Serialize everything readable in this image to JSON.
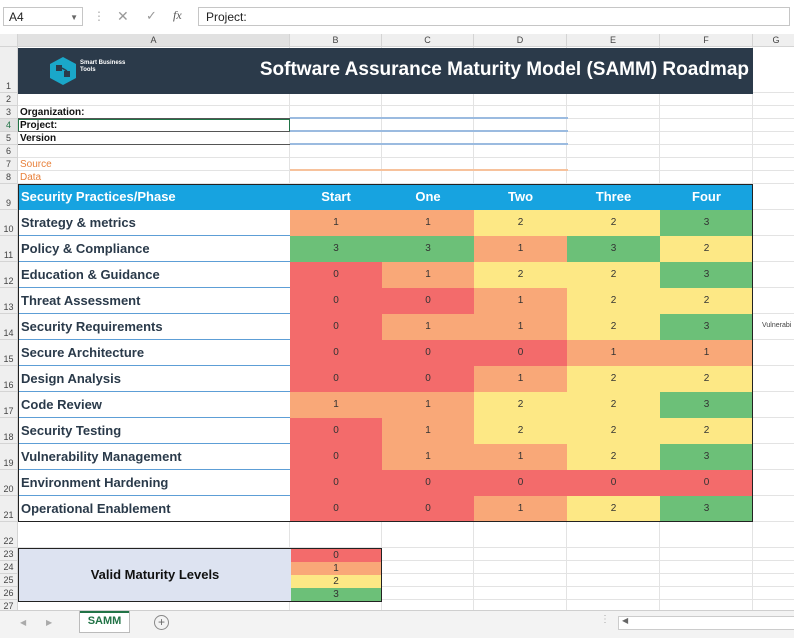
{
  "formula_bar": {
    "name_box": "A4",
    "formula": "Project:"
  },
  "columns": [
    "A",
    "B",
    "C",
    "D",
    "E",
    "F",
    "G"
  ],
  "rows": [
    "1",
    "2",
    "3",
    "4",
    "5",
    "6",
    "7",
    "8",
    "9",
    "10",
    "11",
    "12",
    "13",
    "14",
    "15",
    "16",
    "17",
    "18",
    "19",
    "20",
    "21",
    "22",
    "23",
    "24",
    "25",
    "26",
    "27"
  ],
  "banner": {
    "logo_text": "Smart Business Tools",
    "title": "Software Assurance Maturity Model (SAMM) Roadmap"
  },
  "labels": {
    "organization": "Organization:",
    "project": "Project:",
    "version": "Version",
    "source_data": "Source Data"
  },
  "table": {
    "header": "Security Practices/Phase",
    "phases": [
      "Start",
      "One",
      "Two",
      "Three",
      "Four"
    ],
    "rows": [
      {
        "practice": "Strategy & metrics",
        "values": [
          1,
          1,
          2,
          2,
          3
        ]
      },
      {
        "practice": "Policy & Compliance",
        "values": [
          3,
          3,
          1,
          3,
          2
        ]
      },
      {
        "practice": "Education & Guidance",
        "values": [
          0,
          1,
          2,
          2,
          3
        ]
      },
      {
        "practice": "Threat Assessment",
        "values": [
          0,
          0,
          1,
          2,
          2
        ]
      },
      {
        "practice": "Security Requirements",
        "values": [
          0,
          1,
          1,
          2,
          3
        ]
      },
      {
        "practice": "Secure Architecture",
        "values": [
          0,
          0,
          0,
          1,
          1
        ]
      },
      {
        "practice": "Design Analysis",
        "values": [
          0,
          0,
          1,
          2,
          2
        ]
      },
      {
        "practice": "Code Review",
        "values": [
          1,
          1,
          2,
          2,
          3
        ]
      },
      {
        "practice": "Security Testing",
        "values": [
          0,
          1,
          2,
          2,
          2
        ]
      },
      {
        "practice": "Vulnerability Management",
        "values": [
          0,
          1,
          1,
          2,
          3
        ]
      },
      {
        "practice": "Environment Hardening",
        "values": [
          0,
          0,
          0,
          0,
          0
        ]
      },
      {
        "practice": "Operational Enablement",
        "values": [
          0,
          0,
          1,
          2,
          3
        ]
      }
    ]
  },
  "valid_levels": {
    "label": "Valid Maturity Levels",
    "levels": [
      0,
      1,
      2,
      3
    ]
  },
  "side_note": "Vulnerabi",
  "colors": {
    "level_0": "#f36b6b",
    "level_1": "#f9a878",
    "level_2": "#fde885",
    "level_3": "#6cc078",
    "header": "#17a3e0",
    "banner": "#2b3a4a"
  },
  "sheet_tabs": [
    "SAMM"
  ]
}
